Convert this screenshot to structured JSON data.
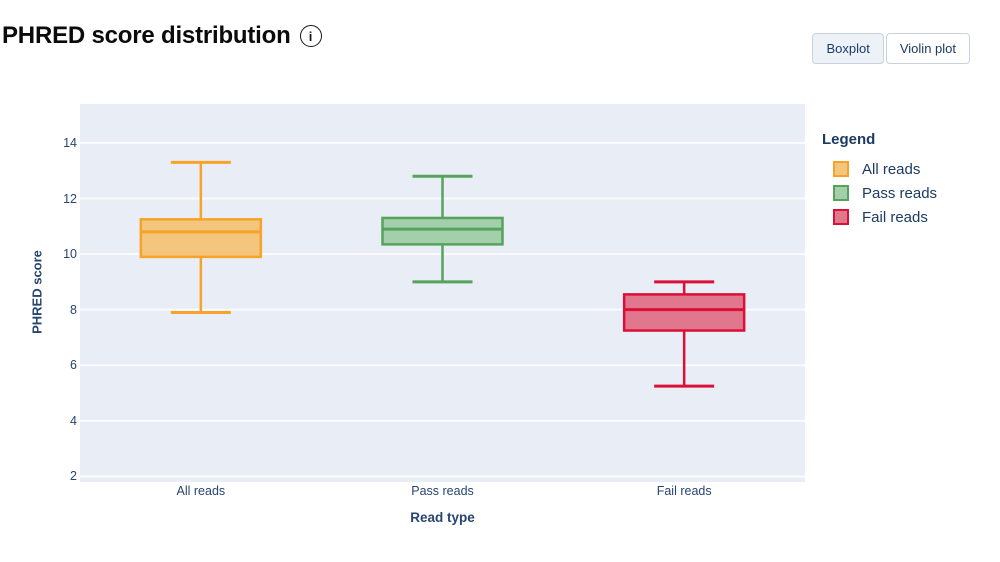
{
  "header": {
    "title": "PHRED score distribution",
    "info_glyph": "i"
  },
  "toolbar": {
    "boxplot_label": "Boxplot",
    "violin_label": "Violin plot",
    "active": "Boxplot"
  },
  "legend": {
    "title": "Legend",
    "position": "right"
  },
  "colors": {
    "plot_background": "#E8EDF6",
    "gridline": "#FBFCFE",
    "axis_text": "#27456F",
    "legend_text": "#1D3A63",
    "button_text": "#1C3A66",
    "button_border": "#C9D2DD",
    "button_active_background": "#EDF2F9"
  },
  "chart_data": {
    "type": "boxplot",
    "title": "PHRED score distribution",
    "xlabel": "Read type",
    "ylabel": "PHRED score",
    "categories": [
      "All reads",
      "Pass reads",
      "Fail reads"
    ],
    "y_ticks": [
      2,
      4,
      6,
      8,
      10,
      12,
      14
    ],
    "ylim": [
      1.8,
      15.4
    ],
    "grid": true,
    "legend_position": "right",
    "series": [
      {
        "name": "All reads",
        "whisker_low": 7.9,
        "q1": 9.9,
        "median": 10.8,
        "q3": 11.25,
        "whisker_high": 13.3,
        "stroke": "#F7A228",
        "fill": "#F4C57D"
      },
      {
        "name": "Pass reads",
        "whisker_low": 9.0,
        "q1": 10.35,
        "median": 10.9,
        "q3": 11.3,
        "whisker_high": 12.8,
        "stroke": "#55A35C",
        "fill": "#A3CFAA"
      },
      {
        "name": "Fail reads",
        "whisker_low": 5.25,
        "q1": 7.25,
        "median": 8.0,
        "q3": 8.55,
        "whisker_high": 9.0,
        "stroke": "#DB0F37",
        "fill": "#E1778C"
      }
    ]
  }
}
